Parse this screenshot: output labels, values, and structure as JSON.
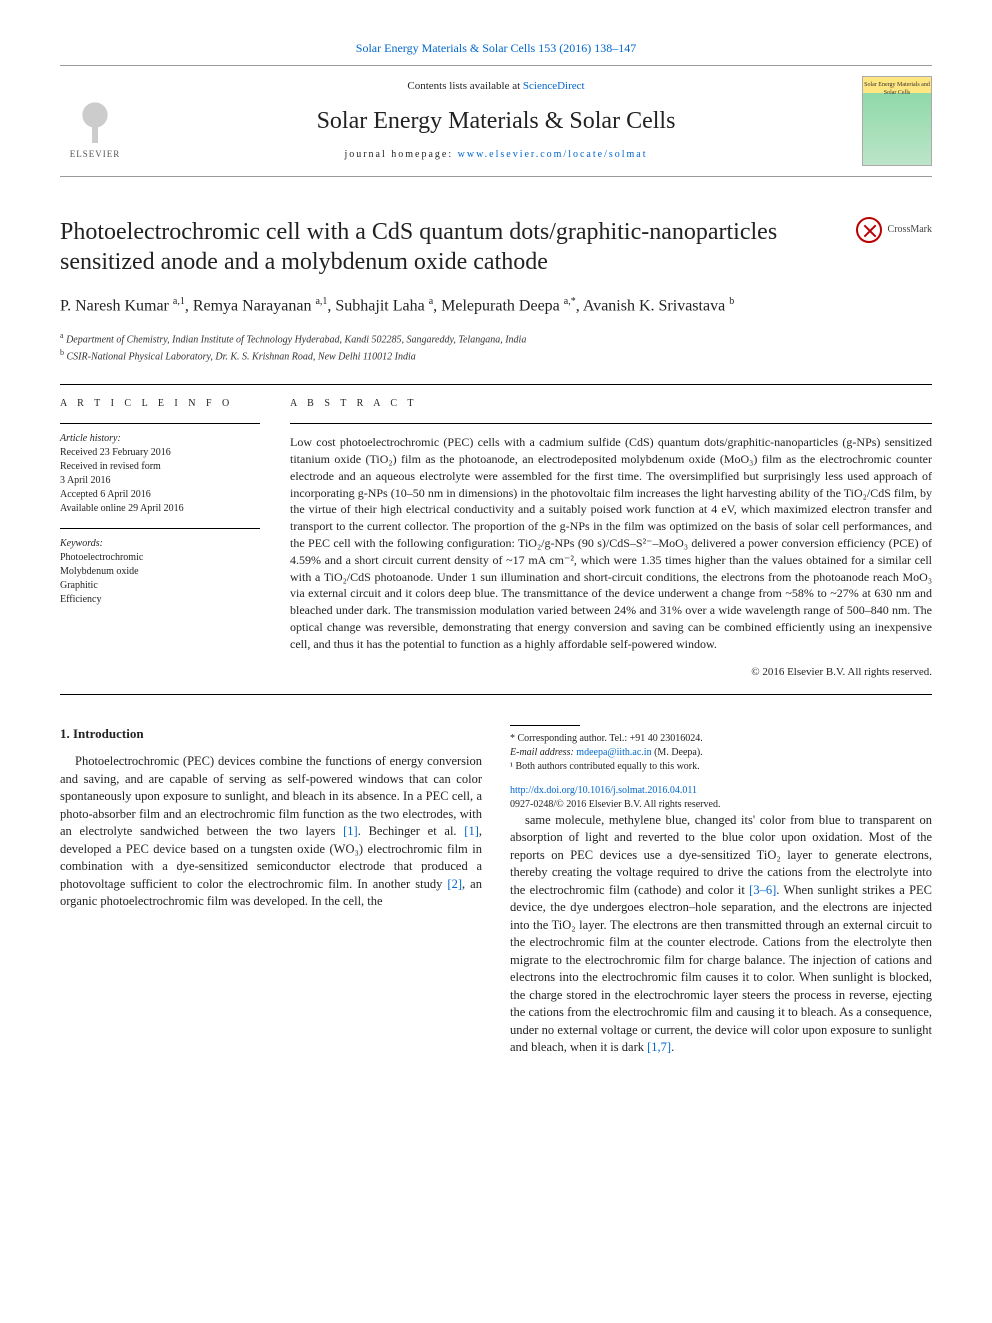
{
  "top_link": {
    "prefix": "",
    "journal": "Solar Energy Materials & Solar Cells 153 (2016) 138–147"
  },
  "header": {
    "contents_prefix": "Contents lists available at ",
    "contents_link": "ScienceDirect",
    "journal_title": "Solar Energy Materials & Solar Cells",
    "homepage_prefix": "journal homepage: ",
    "homepage_url": "www.elsevier.com/locate/solmat",
    "publisher_name": "ELSEVIER",
    "cover_text": "Solar Energy Materials and Solar Cells"
  },
  "article": {
    "title": "Photoelectrochromic cell with a CdS quantum dots/graphitic-nanoparticles sensitized anode and a molybdenum oxide cathode",
    "crossmark": "CrossMark",
    "authors_html": "P. Naresh Kumar <sup>a,1</sup>, Remya Narayanan <sup>a,1</sup>, Subhajit Laha <sup>a</sup>, Melepurath Deepa <sup>a,*</sup>, Avanish K. Srivastava <sup>b</sup>",
    "affiliations": {
      "a": "Department of Chemistry, Indian Institute of Technology Hyderabad, Kandi 502285, Sangareddy, Telangana, India",
      "b": "CSIR-National Physical Laboratory, Dr. K. S. Krishnan Road, New Delhi 110012 India"
    }
  },
  "info": {
    "label": "A R T I C L E  I N F O",
    "history_label": "Article history:",
    "history": [
      "Received 23 February 2016",
      "Received in revised form",
      "3 April 2016",
      "Accepted 6 April 2016",
      "Available online 29 April 2016"
    ],
    "keywords_label": "Keywords:",
    "keywords": [
      "Photoelectrochromic",
      "Molybdenum oxide",
      "Graphitic",
      "Efficiency"
    ]
  },
  "abstract": {
    "label": "A B S T R A C T",
    "text": "Low cost photoelectrochromic (PEC) cells with a cadmium sulfide (CdS) quantum dots/graphitic-nanoparticles (g-NPs) sensitized titanium oxide (TiO₂) film as the photoanode, an electrodeposited molybdenum oxide (MoO₃) film as the electrochromic counter electrode and an aqueous electrolyte were assembled for the first time. The oversimplified but surprisingly less used approach of incorporating g-NPs (10–50 nm in dimensions) in the photovoltaic film increases the light harvesting ability of the TiO₂/CdS film, by the virtue of their high electrical conductivity and a suitably poised work function at 4 eV, which maximized electron transfer and transport to the current collector. The proportion of the g-NPs in the film was optimized on the basis of solar cell performances, and the PEC cell with the following configuration: TiO₂/g-NPs (90 s)/CdS–S²⁻–MoO₃ delivered a power conversion efficiency (PCE) of 4.59% and a short circuit current density of ~17 mA cm⁻², which were 1.35 times higher than the values obtained for a similar cell with a TiO₂/CdS photoanode. Under 1 sun illumination and short-circuit conditions, the electrons from the photoanode reach MoO₃ via external circuit and it colors deep blue. The transmittance of the device underwent a change from ~58% to ~27% at 630 nm and bleached under dark. The transmission modulation varied between 24% and 31% over a wide wavelength range of 500–840 nm. The optical change was reversible, demonstrating that energy conversion and saving can be combined efficiently using an inexpensive cell, and thus it has the potential to function as a highly affordable self-powered window.",
    "copyright": "© 2016 Elsevier B.V. All rights reserved."
  },
  "body": {
    "section_heading": "1.  Introduction",
    "col1": "Photoelectrochromic (PEC) devices combine the functions of energy conversion and saving, and are capable of serving as self-powered windows that can color spontaneously upon exposure to sunlight, and bleach in its absence. In a PEC cell, a photo-absorber film and an electrochromic film function as the two electrodes, with an electrolyte sandwiched between the two layers [1]. Bechinger et al. [1], developed a PEC device based on a tungsten oxide (WO₃) electrochromic film in combination with a dye-sensitized semiconductor electrode that produced a photovoltage sufficient to color the electrochromic film. In another study [2], an organic photoelectrochromic film was developed. In the cell, the",
    "col2": "same molecule, methylene blue, changed its' color from blue to transparent on absorption of light and reverted to the blue color upon oxidation. Most of the reports on PEC devices use a dye-sensitized TiO₂ layer to generate electrons, thereby creating the voltage required to drive the cations from the electrolyte into the electrochromic film (cathode) and color it [3–6]. When sunlight strikes a PEC device, the dye undergoes electron–hole separation, and the electrons are injected into the TiO₂ layer. The electrons are then transmitted through an external circuit to the electrochromic film at the counter electrode. Cations from the electrolyte then migrate to the electrochromic film for charge balance. The injection of cations and electrons into the electrochromic film causes it to color. When sunlight is blocked, the charge stored in the electrochromic layer steers the process in reverse, ejecting the cations from the electrochromic film and causing it to bleach. As a consequence, under no external voltage or current, the device will color upon exposure to sunlight and bleach, when it is dark [1,7]."
  },
  "footnotes": {
    "corr": "* Corresponding author. Tel.: +91 40 23016024.",
    "email_label": "E-mail address: ",
    "email": "mdeepa@iith.ac.in",
    "email_suffix": " (M. Deepa).",
    "equal": "¹ Both authors contributed equally to this work.",
    "doi_url": "http://dx.doi.org/10.1016/j.solmat.2016.04.011",
    "issn_line": "0927-0248/© 2016 Elsevier B.V. All rights reserved."
  },
  "colors": {
    "link": "#0066cc",
    "text": "#222222",
    "rule": "#000000",
    "muted": "#555555"
  }
}
